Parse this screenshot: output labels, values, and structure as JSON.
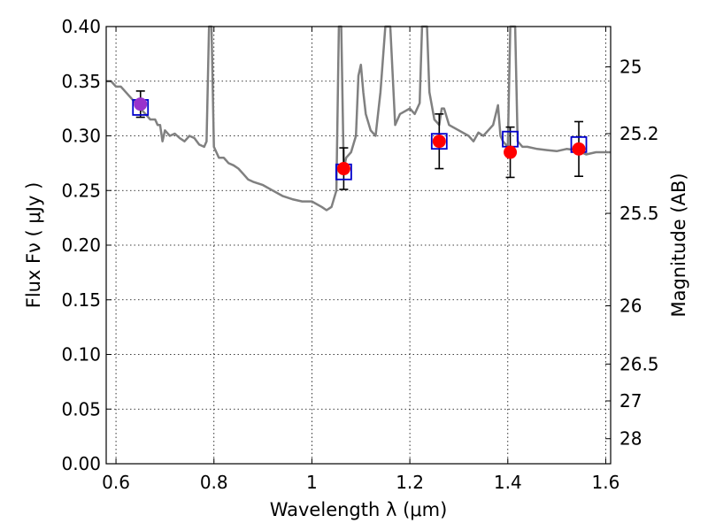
{
  "chart_data": {
    "type": "scatter",
    "xlabel": "Wavelength  λ (μm)",
    "ylabel": "Flux  Fν  ( μJy )",
    "ylabel_right": "Magnitude (AB)",
    "xlim": [
      0.58,
      1.61
    ],
    "ylim": [
      0.0,
      0.4
    ],
    "grid": true,
    "x_ticks": [
      "0.6",
      "0.8",
      "1",
      "1.2",
      "1.4",
      "1.6"
    ],
    "x_tick_values": [
      0.6,
      0.8,
      1.0,
      1.2,
      1.4,
      1.6
    ],
    "y_ticks": [
      "0.00",
      "0.05",
      "0.10",
      "0.15",
      "0.20",
      "0.25",
      "0.30",
      "0.35",
      "0.40"
    ],
    "y_tick_values": [
      0.0,
      0.05,
      0.1,
      0.15,
      0.2,
      0.25,
      0.3,
      0.35,
      0.4
    ],
    "right_ticks": [
      {
        "label": "25",
        "flux": 0.3631
      },
      {
        "label": "25.2",
        "flux": 0.302
      },
      {
        "label": "25.5",
        "flux": 0.2291
      },
      {
        "label": "26",
        "flux": 0.1445
      },
      {
        "label": "26.5",
        "flux": 0.0912
      },
      {
        "label": "27",
        "flux": 0.0575
      },
      {
        "label": "28",
        "flux": 0.0229
      }
    ],
    "model_spectrum": {
      "color": "#808080",
      "x": [
        0.58,
        0.59,
        0.6,
        0.61,
        0.62,
        0.63,
        0.64,
        0.65,
        0.66,
        0.67,
        0.68,
        0.685,
        0.69,
        0.695,
        0.7,
        0.71,
        0.72,
        0.73,
        0.74,
        0.75,
        0.76,
        0.77,
        0.78,
        0.785,
        0.79,
        0.795,
        0.8,
        0.805,
        0.81,
        0.82,
        0.83,
        0.84,
        0.85,
        0.86,
        0.87,
        0.88,
        0.9,
        0.92,
        0.94,
        0.96,
        0.98,
        1.0,
        1.02,
        1.03,
        1.04,
        1.05,
        1.055,
        1.06,
        1.065,
        1.07,
        1.08,
        1.09,
        1.095,
        1.1,
        1.105,
        1.11,
        1.12,
        1.13,
        1.14,
        1.15,
        1.155,
        1.16,
        1.17,
        1.18,
        1.2,
        1.21,
        1.22,
        1.225,
        1.23,
        1.235,
        1.24,
        1.25,
        1.26,
        1.265,
        1.27,
        1.28,
        1.3,
        1.32,
        1.33,
        1.34,
        1.35,
        1.36,
        1.37,
        1.38,
        1.385,
        1.39,
        1.4,
        1.405,
        1.41,
        1.415,
        1.42,
        1.43,
        1.44,
        1.46,
        1.48,
        1.5,
        1.52,
        1.54,
        1.56,
        1.58,
        1.6,
        1.61
      ],
      "y": [
        0.35,
        0.35,
        0.345,
        0.345,
        0.34,
        0.335,
        0.33,
        0.325,
        0.32,
        0.315,
        0.315,
        0.31,
        0.31,
        0.295,
        0.305,
        0.3,
        0.302,
        0.298,
        0.295,
        0.3,
        0.298,
        0.292,
        0.29,
        0.295,
        0.4,
        0.4,
        0.29,
        0.285,
        0.28,
        0.28,
        0.275,
        0.273,
        0.27,
        0.265,
        0.26,
        0.258,
        0.255,
        0.25,
        0.245,
        0.242,
        0.24,
        0.24,
        0.235,
        0.232,
        0.235,
        0.25,
        0.4,
        0.4,
        0.27,
        0.28,
        0.285,
        0.3,
        0.355,
        0.365,
        0.34,
        0.32,
        0.305,
        0.3,
        0.34,
        0.4,
        0.4,
        0.4,
        0.31,
        0.32,
        0.325,
        0.32,
        0.33,
        0.4,
        0.4,
        0.4,
        0.34,
        0.315,
        0.31,
        0.325,
        0.325,
        0.31,
        0.305,
        0.3,
        0.295,
        0.303,
        0.3,
        0.305,
        0.31,
        0.328,
        0.3,
        0.295,
        0.29,
        0.4,
        0.4,
        0.4,
        0.295,
        0.29,
        0.29,
        0.288,
        0.287,
        0.286,
        0.288,
        0.287,
        0.283,
        0.285,
        0.285,
        0.285
      ]
    },
    "model_fluxes": {
      "color": "#0000cc",
      "x": [
        0.65,
        1.065,
        1.26,
        1.405,
        1.545
      ],
      "y": [
        0.326,
        0.267,
        0.295,
        0.297,
        0.292
      ]
    },
    "observed": {
      "x": [
        0.65,
        1.065,
        1.26,
        1.405,
        1.545
      ],
      "y": [
        0.329,
        0.27,
        0.295,
        0.285,
        0.288
      ],
      "err": [
        0.012,
        0.019,
        0.025,
        0.023,
        0.025
      ],
      "colors": [
        "#9932cc",
        "#ff0000",
        "#ff0000",
        "#ff0000",
        "#ff0000"
      ]
    }
  }
}
